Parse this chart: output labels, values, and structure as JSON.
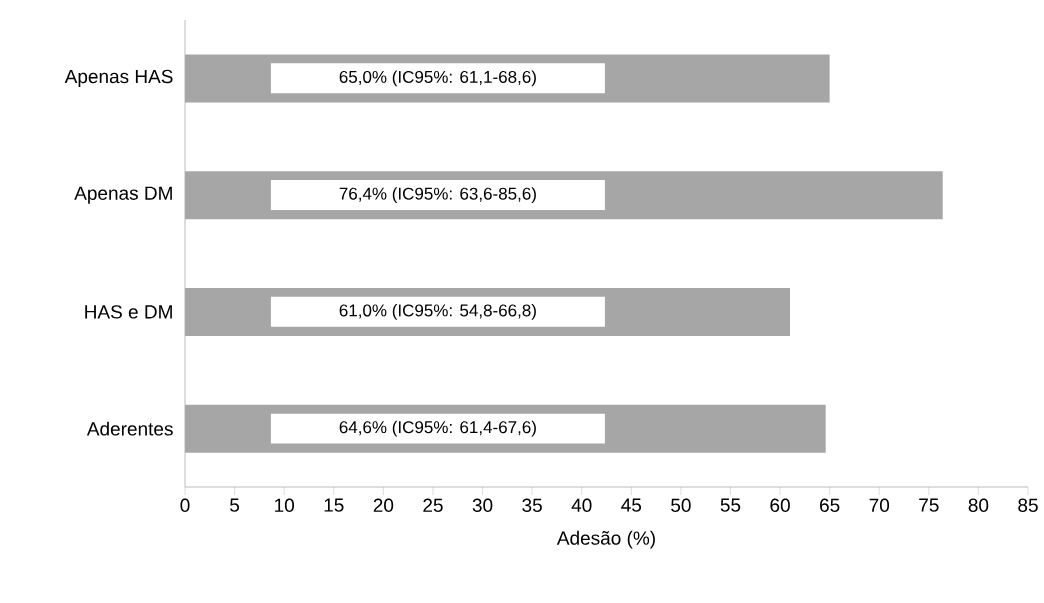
{
  "chart_data": {
    "type": "bar",
    "orientation": "horizontal",
    "xlabel": "Adesão (%)",
    "categories": [
      "Apenas HAS",
      "Apenas DM",
      "HAS e DM",
      "Aderentes"
    ],
    "values": [
      65.0,
      76.4,
      61.0,
      64.6
    ],
    "value_labels": [
      "65,0% (IC95%: 61,1-68,6)",
      "76,4% (IC95%: 63,6-85,6)",
      "61,0% (IC95%: 54,8-66,8)",
      "64,6% (IC95%: 61,4-67,6)"
    ],
    "color": "#a6a6a6",
    "xlim": [
      0,
      85
    ],
    "xticks": [
      0,
      5,
      10,
      15,
      20,
      25,
      30,
      35,
      40,
      45,
      50,
      55,
      60,
      65,
      70,
      75,
      80,
      85
    ]
  }
}
